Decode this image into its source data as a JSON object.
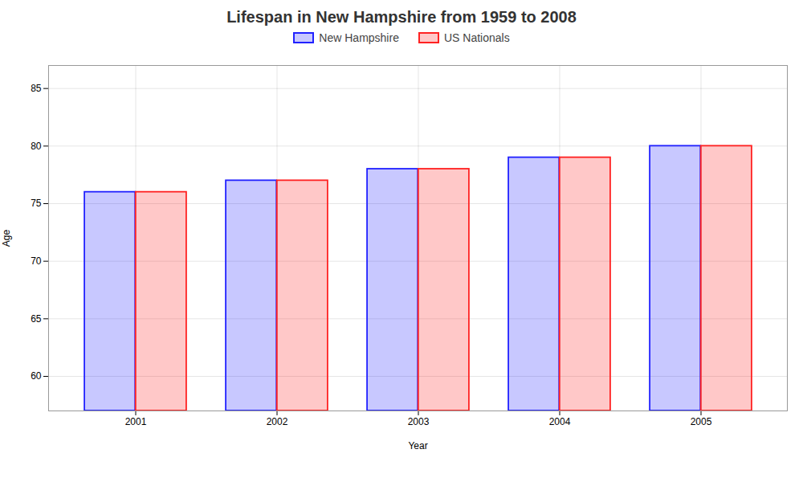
{
  "chart_data": {
    "type": "bar",
    "title": "Lifespan in New Hampshire from 1959 to 2008",
    "xlabel": "Year",
    "ylabel": "Age",
    "categories": [
      "2001",
      "2002",
      "2003",
      "2004",
      "2005"
    ],
    "series": [
      {
        "name": "New Hampshire",
        "color": "#2222ff",
        "values": [
          76,
          77,
          78,
          79,
          80
        ]
      },
      {
        "name": "US Nationals",
        "color": "#ff2222",
        "values": [
          76,
          77,
          78,
          79,
          80
        ]
      }
    ],
    "ylim": [
      57,
      87
    ],
    "yticks": [
      60,
      65,
      70,
      75,
      80,
      85
    ],
    "grid": true,
    "legend": "top"
  }
}
